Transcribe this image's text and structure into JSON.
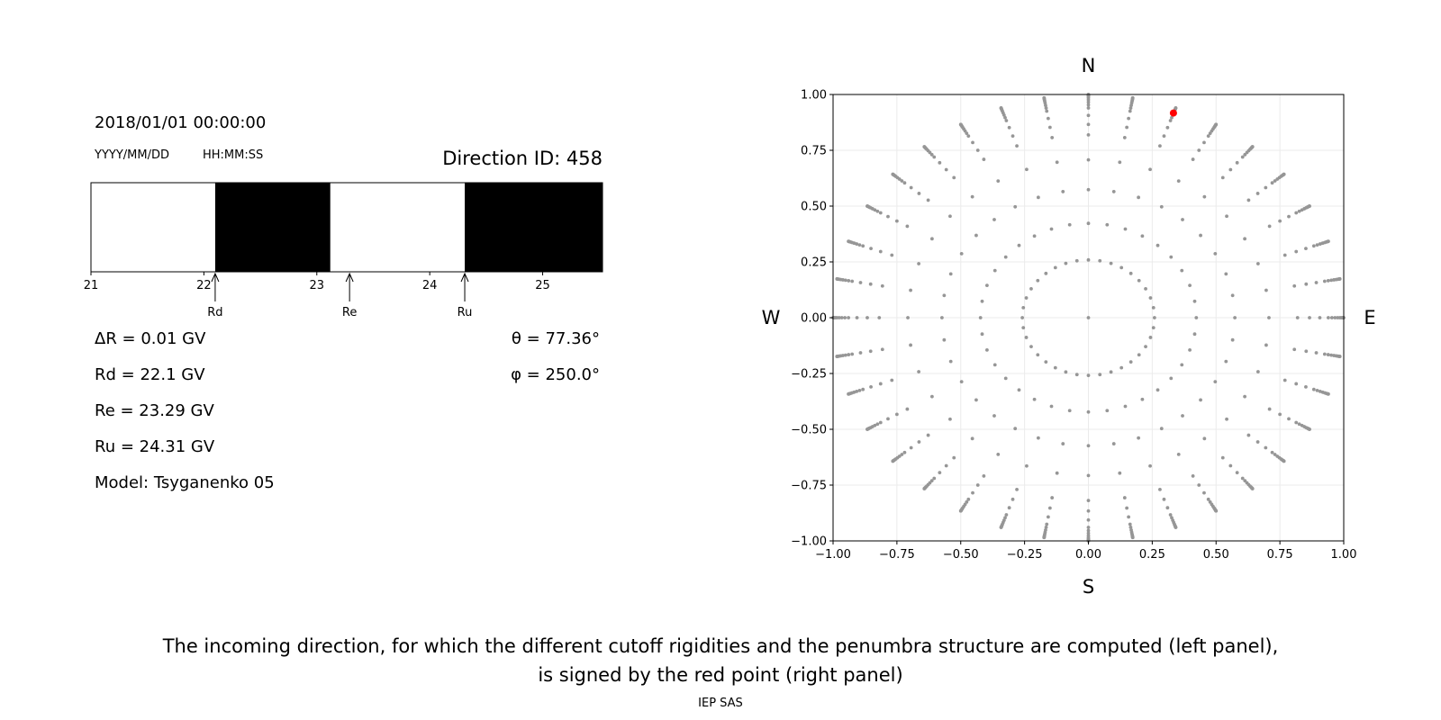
{
  "header": {
    "datetime": "2018/01/01 00:00:00",
    "date_format": "YYYY/MM/DD",
    "time_format": "HH:MM:SS",
    "direction_id": "Direction ID: 458"
  },
  "stats": {
    "delta_r": "ΔR = 0.01 GV",
    "rd": "Rd = 22.1 GV",
    "re": "Re = 23.29 GV",
    "ru": "Ru = 24.31 GV",
    "model": "Model: Tsyganenko 05",
    "theta": "θ = 77.36°",
    "phi": "φ = 250.0°"
  },
  "caption": {
    "line1": "The incoming direction, for which the different cutoff rigidities and the penumbra structure are computed (left panel),",
    "line2": "is signed by the red point (right panel)",
    "footer": "IEP SAS"
  },
  "chart_data": [
    {
      "type": "bar",
      "xlim": [
        21,
        25.53
      ],
      "ticks": [
        21,
        22,
        23,
        24,
        25
      ],
      "tick_labels": [
        "21",
        "22",
        "23",
        "24",
        "25"
      ],
      "segments": [
        {
          "from": 21,
          "to": 22.1,
          "color": "#ffffff"
        },
        {
          "from": 22.1,
          "to": 23.12,
          "color": "#000000"
        },
        {
          "from": 23.12,
          "to": 24.31,
          "color": "#ffffff"
        },
        {
          "from": 24.31,
          "to": 25.53,
          "color": "#000000"
        }
      ],
      "markers": [
        {
          "label": "Rd",
          "value": 22.1
        },
        {
          "label": "Re",
          "value": 23.29
        },
        {
          "label": "Ru",
          "value": 24.31
        }
      ]
    },
    {
      "type": "scatter",
      "xlim": [
        -1,
        1
      ],
      "ylim": [
        -1,
        1
      ],
      "ticks": [
        -1,
        -0.75,
        -0.5,
        -0.25,
        0,
        0.25,
        0.5,
        0.75,
        1
      ],
      "tick_labels": [
        "−1.00",
        "−0.75",
        "−0.50",
        "−0.25",
        "0.00",
        "0.25",
        "0.50",
        "0.75",
        "1.00"
      ],
      "grid": true,
      "compass": {
        "top": "N",
        "bottom": "S",
        "left": "W",
        "right": "E"
      },
      "point_color": "#969696",
      "highlight_color": "#ff0000",
      "rays": 36,
      "ring_zeniths": [
        0,
        15,
        25,
        35,
        45,
        55,
        60,
        65,
        70,
        72.5,
        75,
        77.5,
        80,
        82,
        84,
        86,
        88,
        90
      ],
      "highlight": {
        "x": 0.333,
        "y": 0.917
      }
    }
  ]
}
